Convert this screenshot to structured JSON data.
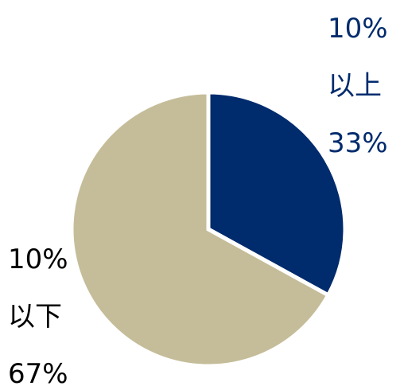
{
  "chart_data": {
    "type": "pie",
    "categories": [
      "10%以上",
      "10%以下"
    ],
    "values": [
      33,
      67
    ],
    "value_labels": [
      "33%",
      "67%"
    ],
    "colors": [
      "#002b6d",
      "#c5bd99"
    ],
    "label_colors": [
      "#002b6d",
      "#000000"
    ]
  }
}
